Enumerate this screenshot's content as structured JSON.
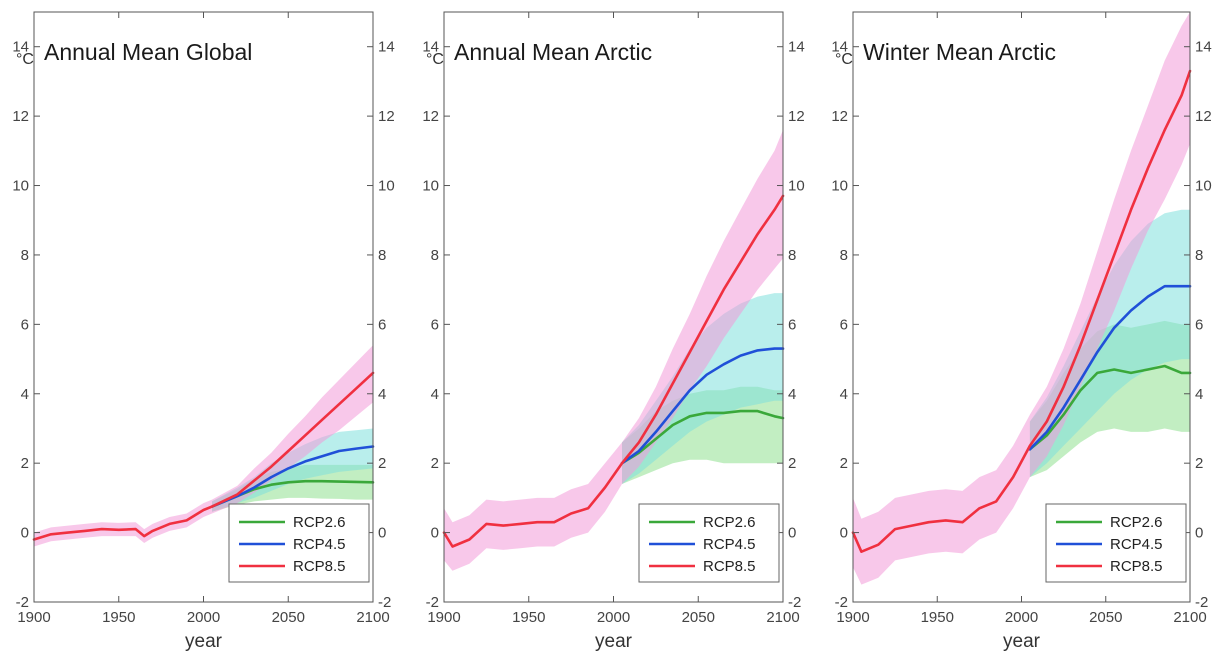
{
  "chart_data": [
    {
      "type": "line",
      "title": "Annual Mean Global",
      "unit_label": "°C",
      "xlabel": "year",
      "xlim": [
        1900,
        2100
      ],
      "ylim": [
        -2,
        15
      ],
      "xticks": [
        1900,
        1950,
        2000,
        2050,
        2100
      ],
      "yticks": [
        -2,
        0,
        2,
        4,
        6,
        8,
        10,
        12,
        14
      ],
      "legend": "bottom-right",
      "grid": false,
      "series": [
        {
          "name": "RCP2.6",
          "color": "#3aa83a",
          "band_color": "#90e090",
          "x": [
            2005,
            2020,
            2030,
            2040,
            2050,
            2060,
            2070,
            2080,
            2090,
            2100
          ],
          "y": [
            0.75,
            1.05,
            1.25,
            1.38,
            1.45,
            1.48,
            1.48,
            1.47,
            1.46,
            1.45
          ],
          "lower": [
            0.6,
            0.8,
            0.9,
            0.95,
            1.0,
            1.0,
            0.98,
            0.97,
            0.95,
            0.95
          ],
          "upper": [
            0.9,
            1.25,
            1.55,
            1.75,
            1.85,
            1.95,
            1.95,
            1.95,
            1.95,
            1.95
          ]
        },
        {
          "name": "RCP4.5",
          "color": "#2050d8",
          "band_color": "#80e0dc",
          "x": [
            2005,
            2020,
            2030,
            2040,
            2050,
            2060,
            2070,
            2080,
            2090,
            2100
          ],
          "y": [
            0.75,
            1.05,
            1.3,
            1.6,
            1.85,
            2.05,
            2.2,
            2.35,
            2.42,
            2.48
          ],
          "lower": [
            0.6,
            0.85,
            1.0,
            1.2,
            1.4,
            1.55,
            1.65,
            1.75,
            1.8,
            1.85
          ],
          "upper": [
            0.9,
            1.3,
            1.6,
            2.0,
            2.3,
            2.55,
            2.75,
            2.9,
            2.95,
            3.0
          ]
        },
        {
          "name": "RCP8.5",
          "color": "#f03040",
          "band_color": "#f39ad8",
          "x": [
            1900,
            1910,
            1920,
            1930,
            1940,
            1950,
            1960,
            1965,
            1970,
            1980,
            1990,
            2000,
            2005,
            2020,
            2030,
            2040,
            2050,
            2060,
            2070,
            2080,
            2090,
            2100
          ],
          "y": [
            -0.2,
            -0.05,
            0.0,
            0.05,
            0.1,
            0.08,
            0.1,
            -0.1,
            0.05,
            0.25,
            0.35,
            0.65,
            0.75,
            1.1,
            1.5,
            1.9,
            2.35,
            2.8,
            3.25,
            3.7,
            4.15,
            4.6
          ],
          "lower": [
            -0.4,
            -0.25,
            -0.2,
            -0.15,
            -0.1,
            -0.1,
            -0.1,
            -0.3,
            -0.15,
            0.05,
            0.15,
            0.45,
            0.55,
            0.85,
            1.15,
            1.5,
            1.85,
            2.2,
            2.6,
            2.95,
            3.35,
            3.75
          ],
          "upper": [
            0.0,
            0.15,
            0.2,
            0.25,
            0.3,
            0.28,
            0.3,
            0.1,
            0.25,
            0.45,
            0.55,
            0.85,
            0.95,
            1.35,
            1.85,
            2.3,
            2.85,
            3.35,
            3.9,
            4.4,
            4.9,
            5.4
          ]
        }
      ]
    },
    {
      "type": "line",
      "title": "Annual Mean Arctic",
      "unit_label": "°C",
      "xlabel": "year",
      "xlim": [
        1900,
        2100
      ],
      "ylim": [
        -2,
        15
      ],
      "xticks": [
        1900,
        1950,
        2000,
        2050,
        2100
      ],
      "yticks": [
        -2,
        0,
        2,
        4,
        6,
        8,
        10,
        12,
        14
      ],
      "legend": "bottom-right",
      "grid": false,
      "series": [
        {
          "name": "RCP2.6",
          "color": "#3aa83a",
          "band_color": "#90e090",
          "x": [
            2005,
            2015,
            2025,
            2035,
            2045,
            2055,
            2065,
            2075,
            2085,
            2095,
            2100
          ],
          "y": [
            2.0,
            2.3,
            2.7,
            3.1,
            3.35,
            3.45,
            3.45,
            3.5,
            3.5,
            3.35,
            3.3
          ],
          "lower": [
            1.4,
            1.6,
            1.8,
            2.0,
            2.1,
            2.1,
            2.0,
            2.0,
            2.0,
            2.0,
            2.0
          ],
          "upper": [
            2.6,
            3.0,
            3.5,
            3.8,
            4.0,
            4.1,
            4.1,
            4.2,
            4.2,
            4.1,
            4.1
          ]
        },
        {
          "name": "RCP4.5",
          "color": "#2050d8",
          "band_color": "#80e0dc",
          "x": [
            2005,
            2015,
            2025,
            2035,
            2045,
            2055,
            2065,
            2075,
            2085,
            2095,
            2100
          ],
          "y": [
            2.0,
            2.35,
            2.9,
            3.5,
            4.1,
            4.55,
            4.85,
            5.1,
            5.25,
            5.3,
            5.3
          ],
          "lower": [
            1.4,
            1.7,
            2.1,
            2.5,
            2.9,
            3.2,
            3.4,
            3.6,
            3.7,
            3.8,
            3.8
          ],
          "upper": [
            2.6,
            3.1,
            3.8,
            4.5,
            5.3,
            5.9,
            6.3,
            6.6,
            6.8,
            6.9,
            6.9
          ]
        },
        {
          "name": "RCP8.5",
          "color": "#f03040",
          "band_color": "#f39ad8",
          "x": [
            1900,
            1905,
            1915,
            1925,
            1935,
            1945,
            1955,
            1965,
            1975,
            1985,
            1995,
            2005,
            2015,
            2025,
            2035,
            2045,
            2055,
            2065,
            2075,
            2085,
            2095,
            2100
          ],
          "y": [
            0.0,
            -0.4,
            -0.2,
            0.25,
            0.2,
            0.25,
            0.3,
            0.3,
            0.55,
            0.7,
            1.3,
            2.0,
            2.6,
            3.4,
            4.3,
            5.2,
            6.1,
            7.0,
            7.8,
            8.6,
            9.3,
            9.7
          ],
          "lower": [
            -0.8,
            -1.1,
            -0.9,
            -0.45,
            -0.5,
            -0.45,
            -0.4,
            -0.4,
            -0.15,
            0.0,
            0.6,
            1.4,
            1.9,
            2.6,
            3.3,
            4.1,
            4.8,
            5.6,
            6.3,
            7.0,
            7.6,
            7.9
          ],
          "upper": [
            0.7,
            0.3,
            0.5,
            0.95,
            0.9,
            0.95,
            1.0,
            1.0,
            1.25,
            1.4,
            2.0,
            2.6,
            3.3,
            4.2,
            5.3,
            6.3,
            7.4,
            8.4,
            9.3,
            10.2,
            11.0,
            11.6
          ]
        }
      ]
    },
    {
      "type": "line",
      "title": "Winter Mean Arctic",
      "unit_label": "°C",
      "xlabel": "year",
      "xlim": [
        1900,
        2100
      ],
      "ylim": [
        -2,
        15
      ],
      "xticks": [
        1900,
        1950,
        2000,
        2050,
        2100
      ],
      "yticks": [
        -2,
        0,
        2,
        4,
        6,
        8,
        10,
        12,
        14
      ],
      "legend": "bottom-right",
      "grid": false,
      "series": [
        {
          "name": "RCP2.6",
          "color": "#3aa83a",
          "band_color": "#90e090",
          "x": [
            2005,
            2015,
            2025,
            2035,
            2045,
            2055,
            2065,
            2075,
            2085,
            2095,
            2100
          ],
          "y": [
            2.4,
            2.8,
            3.4,
            4.1,
            4.6,
            4.7,
            4.6,
            4.7,
            4.8,
            4.6,
            4.6
          ],
          "lower": [
            1.6,
            1.8,
            2.2,
            2.6,
            2.9,
            3.0,
            2.9,
            2.9,
            3.0,
            2.9,
            2.9
          ],
          "upper": [
            3.2,
            3.8,
            4.6,
            5.3,
            5.8,
            6.0,
            5.9,
            6.0,
            6.1,
            6.0,
            6.0
          ]
        },
        {
          "name": "RCP4.5",
          "color": "#2050d8",
          "band_color": "#80e0dc",
          "x": [
            2005,
            2015,
            2025,
            2035,
            2045,
            2055,
            2065,
            2075,
            2085,
            2095,
            2100
          ],
          "y": [
            2.4,
            2.9,
            3.6,
            4.4,
            5.2,
            5.9,
            6.4,
            6.8,
            7.1,
            7.1,
            7.1
          ],
          "lower": [
            1.6,
            2.0,
            2.5,
            3.0,
            3.5,
            4.0,
            4.4,
            4.7,
            4.9,
            5.0,
            5.0
          ],
          "upper": [
            3.2,
            3.9,
            4.8,
            5.8,
            6.8,
            7.7,
            8.4,
            8.9,
            9.2,
            9.3,
            9.3
          ]
        },
        {
          "name": "RCP8.5",
          "color": "#f03040",
          "band_color": "#f39ad8",
          "x": [
            1900,
            1905,
            1915,
            1925,
            1935,
            1945,
            1955,
            1965,
            1975,
            1985,
            1995,
            2005,
            2015,
            2025,
            2035,
            2045,
            2055,
            2065,
            2075,
            2085,
            2095,
            2100
          ],
          "y": [
            0.0,
            -0.55,
            -0.35,
            0.1,
            0.2,
            0.3,
            0.35,
            0.3,
            0.7,
            0.9,
            1.6,
            2.5,
            3.2,
            4.2,
            5.4,
            6.7,
            8.0,
            9.3,
            10.5,
            11.6,
            12.6,
            13.3
          ],
          "lower": [
            -1.0,
            -1.5,
            -1.3,
            -0.8,
            -0.7,
            -0.6,
            -0.55,
            -0.6,
            -0.2,
            0.0,
            0.7,
            1.6,
            2.2,
            3.1,
            4.2,
            5.3,
            6.4,
            7.6,
            8.7,
            9.6,
            10.6,
            11.2
          ],
          "upper": [
            1.0,
            0.4,
            0.6,
            1.0,
            1.1,
            1.2,
            1.25,
            1.2,
            1.6,
            1.8,
            2.5,
            3.4,
            4.2,
            5.3,
            6.6,
            8.1,
            9.6,
            11.0,
            12.3,
            13.6,
            14.6,
            15.0
          ]
        }
      ]
    }
  ]
}
